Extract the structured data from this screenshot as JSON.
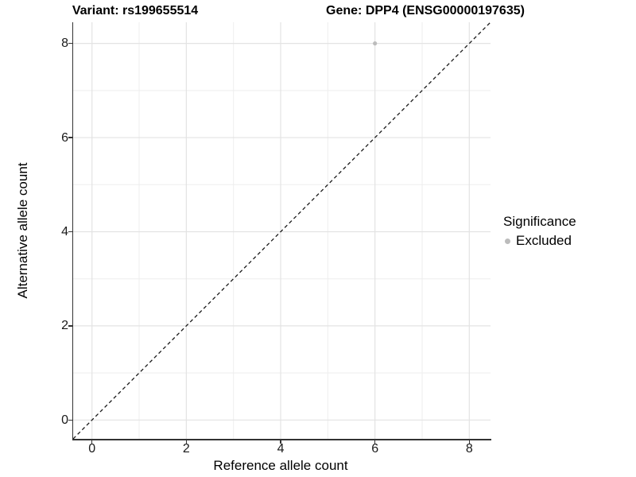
{
  "chart_data": {
    "type": "scatter",
    "titles": {
      "variant": "Variant: rs199655514",
      "gene": "Gene: DPP4 (ENSG00000197635)"
    },
    "xlabel": "Reference allele count",
    "ylabel": "Alternative allele count",
    "xlim": [
      -0.4,
      8.45
    ],
    "ylim": [
      -0.4,
      8.45
    ],
    "x_ticks": [
      0,
      2,
      4,
      6,
      8
    ],
    "y_ticks": [
      0,
      2,
      4,
      6,
      8
    ],
    "x_minor": [
      1,
      3,
      5,
      7
    ],
    "y_minor": [
      1,
      3,
      5,
      7
    ],
    "grid": "major+minor",
    "points": [
      {
        "x": 6,
        "y": 8,
        "series": "Excluded"
      }
    ],
    "reference_line": {
      "kind": "identity",
      "linetype": "dashed",
      "color": "#1a1a1a"
    },
    "legend": {
      "title": "Significance",
      "position": "right",
      "items": [
        {
          "label": "Excluded",
          "color": "#bcbcbc"
        }
      ]
    },
    "colors": {
      "point": "#bcbcbc",
      "grid_major": "#e3e3e3",
      "grid_minor": "#eeeeee",
      "axis": "#333333",
      "tick_text": "#1a1a1a",
      "title_text": "#000000"
    }
  }
}
